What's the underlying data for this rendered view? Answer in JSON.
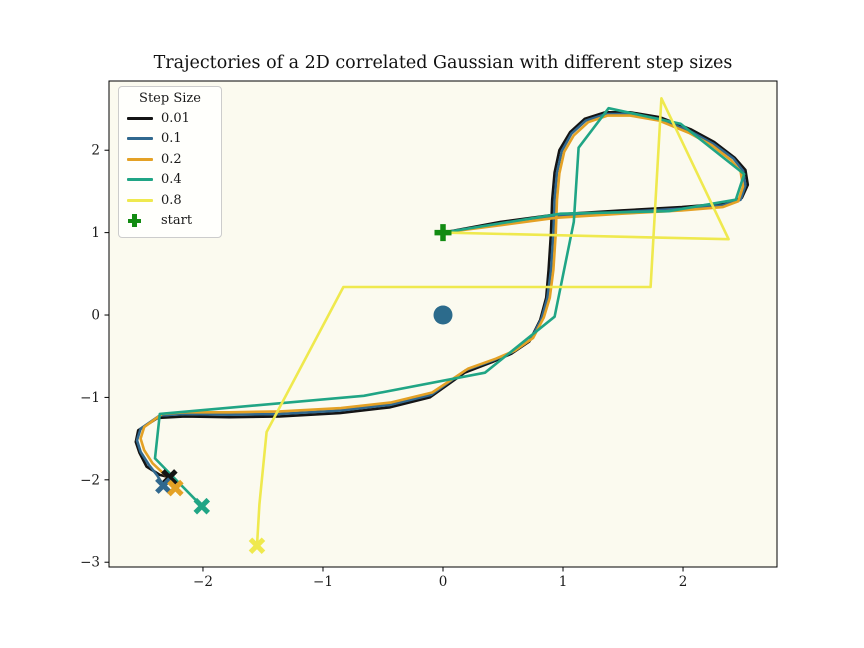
{
  "title": "Trajectories of a 2D correlated Gaussian with different step sizes",
  "legend": {
    "title": "Step Size",
    "entries": [
      {
        "label": "0.01",
        "type": "line",
        "color": "#141414"
      },
      {
        "label": "0.1",
        "type": "line",
        "color": "#31688e"
      },
      {
        "label": "0.2",
        "type": "line",
        "color": "#e4a125"
      },
      {
        "label": "0.4",
        "type": "line",
        "color": "#20a585"
      },
      {
        "label": "0.8",
        "type": "line",
        "color": "#efe94e"
      },
      {
        "label": "start",
        "type": "plus",
        "color": "#128b12"
      }
    ]
  },
  "axes": {
    "x_tick_labels": [
      "−2",
      "−1",
      "0",
      "1",
      "2"
    ],
    "y_tick_labels": [
      "−3",
      "−2",
      "−1",
      "0",
      "1",
      "2"
    ],
    "background_color": "#fbfaef",
    "spine_color": "#000000"
  },
  "chart_data": {
    "type": "line",
    "title": "Trajectories of a 2D correlated Gaussian with different step sizes",
    "xlabel": "",
    "ylabel": "",
    "xlim": [
      -2.783,
      2.783
    ],
    "ylim": [
      -3.058,
      2.84
    ],
    "x_ticks": [
      -2,
      -1,
      0,
      1,
      2
    ],
    "y_ticks": [
      -3,
      -2,
      -1,
      0,
      1,
      2
    ],
    "grid": false,
    "legend_position": "upper left",
    "legend_title": "Step Size",
    "series": [
      {
        "name": "0.01",
        "color": "#141414",
        "end_marker": "X",
        "points": [
          [
            0,
            1.0
          ],
          [
            0.48,
            1.13
          ],
          [
            0.94,
            1.22
          ],
          [
            1.49,
            1.27
          ],
          [
            1.99,
            1.31
          ],
          [
            2.33,
            1.35
          ],
          [
            2.49,
            1.42
          ],
          [
            2.54,
            1.58
          ],
          [
            2.52,
            1.76
          ],
          [
            2.43,
            1.91
          ],
          [
            2.26,
            2.1
          ],
          [
            2.07,
            2.25
          ],
          [
            1.81,
            2.4
          ],
          [
            1.56,
            2.46
          ],
          [
            1.35,
            2.46
          ],
          [
            1.18,
            2.38
          ],
          [
            1.06,
            2.22
          ],
          [
            0.97,
            2.0
          ],
          [
            0.93,
            1.73
          ],
          [
            0.91,
            1.4
          ],
          [
            0.9,
            1.0
          ],
          [
            0.88,
            0.55
          ],
          [
            0.86,
            0.21
          ],
          [
            0.81,
            -0.06
          ],
          [
            0.72,
            -0.32
          ],
          [
            0.57,
            -0.47
          ],
          [
            0.41,
            -0.57
          ],
          [
            0.18,
            -0.7
          ],
          [
            -0.11,
            -1.0
          ],
          [
            -0.44,
            -1.12
          ],
          [
            -0.86,
            -1.19
          ],
          [
            -1.36,
            -1.23
          ],
          [
            -1.78,
            -1.24
          ],
          [
            -2.15,
            -1.23
          ],
          [
            -2.38,
            -1.25
          ],
          [
            -2.54,
            -1.4
          ],
          [
            -2.56,
            -1.54
          ],
          [
            -2.53,
            -1.67
          ],
          [
            -2.47,
            -1.84
          ],
          [
            -2.36,
            -1.94
          ],
          [
            -2.28,
            -1.97
          ]
        ]
      },
      {
        "name": "0.1",
        "color": "#31688e",
        "end_marker": "X",
        "points": [
          [
            0,
            1.0
          ],
          [
            0.48,
            1.11
          ],
          [
            0.94,
            1.2
          ],
          [
            1.49,
            1.25
          ],
          [
            1.99,
            1.29
          ],
          [
            2.33,
            1.33
          ],
          [
            2.48,
            1.4
          ],
          [
            2.52,
            1.57
          ],
          [
            2.5,
            1.75
          ],
          [
            2.42,
            1.9
          ],
          [
            2.25,
            2.08
          ],
          [
            2.06,
            2.23
          ],
          [
            1.8,
            2.38
          ],
          [
            1.56,
            2.44
          ],
          [
            1.36,
            2.44
          ],
          [
            1.19,
            2.36
          ],
          [
            1.07,
            2.2
          ],
          [
            0.99,
            1.99
          ],
          [
            0.95,
            1.73
          ],
          [
            0.93,
            1.4
          ],
          [
            0.92,
            1.0
          ],
          [
            0.9,
            0.55
          ],
          [
            0.87,
            0.21
          ],
          [
            0.82,
            -0.05
          ],
          [
            0.73,
            -0.3
          ],
          [
            0.58,
            -0.45
          ],
          [
            0.42,
            -0.55
          ],
          [
            0.19,
            -0.67
          ],
          [
            -0.1,
            -0.97
          ],
          [
            -0.44,
            -1.09
          ],
          [
            -0.86,
            -1.16
          ],
          [
            -1.36,
            -1.2
          ],
          [
            -1.78,
            -1.21
          ],
          [
            -2.15,
            -1.2
          ],
          [
            -2.36,
            -1.22
          ],
          [
            -2.52,
            -1.38
          ],
          [
            -2.55,
            -1.52
          ],
          [
            -2.52,
            -1.66
          ],
          [
            -2.45,
            -1.82
          ],
          [
            -2.38,
            -1.95
          ],
          [
            -2.33,
            -2.07
          ]
        ]
      },
      {
        "name": "0.2",
        "color": "#e4a125",
        "end_marker": "X",
        "points": [
          [
            0,
            1.0
          ],
          [
            0.48,
            1.09
          ],
          [
            0.94,
            1.18
          ],
          [
            1.49,
            1.23
          ],
          [
            1.99,
            1.27
          ],
          [
            2.33,
            1.31
          ],
          [
            2.46,
            1.38
          ],
          [
            2.5,
            1.56
          ],
          [
            2.48,
            1.74
          ],
          [
            2.4,
            1.88
          ],
          [
            2.24,
            2.06
          ],
          [
            2.05,
            2.21
          ],
          [
            1.8,
            2.36
          ],
          [
            1.56,
            2.42
          ],
          [
            1.37,
            2.42
          ],
          [
            1.21,
            2.34
          ],
          [
            1.09,
            2.18
          ],
          [
            1.01,
            1.98
          ],
          [
            0.97,
            1.72
          ],
          [
            0.95,
            1.4
          ],
          [
            0.94,
            1.0
          ],
          [
            0.92,
            0.55
          ],
          [
            0.89,
            0.21
          ],
          [
            0.84,
            -0.03
          ],
          [
            0.75,
            -0.28
          ],
          [
            0.6,
            -0.43
          ],
          [
            0.44,
            -0.53
          ],
          [
            0.21,
            -0.65
          ],
          [
            -0.09,
            -0.94
          ],
          [
            -0.43,
            -1.06
          ],
          [
            -0.85,
            -1.13
          ],
          [
            -1.36,
            -1.17
          ],
          [
            -1.78,
            -1.18
          ],
          [
            -2.15,
            -1.18
          ],
          [
            -2.34,
            -1.2
          ],
          [
            -2.49,
            -1.36
          ],
          [
            -2.52,
            -1.5
          ],
          [
            -2.49,
            -1.64
          ],
          [
            -2.42,
            -1.8
          ],
          [
            -2.31,
            -1.95
          ],
          [
            -2.23,
            -2.1
          ]
        ]
      },
      {
        "name": "0.4",
        "color": "#20a585",
        "end_marker": "X",
        "points": [
          [
            0,
            1.0
          ],
          [
            0.98,
            1.23
          ],
          [
            1.88,
            1.26
          ],
          [
            2.44,
            1.4
          ],
          [
            2.51,
            1.71
          ],
          [
            1.98,
            2.32
          ],
          [
            1.38,
            2.51
          ],
          [
            1.13,
            2.03
          ],
          [
            1.09,
            1.13
          ],
          [
            0.93,
            -0.02
          ],
          [
            0.35,
            -0.7
          ],
          [
            -0.66,
            -0.98
          ],
          [
            -2.36,
            -1.2
          ],
          [
            -2.4,
            -1.74
          ],
          [
            -2.01,
            -2.32
          ]
        ]
      },
      {
        "name": "0.8",
        "color": "#efe94e",
        "end_marker": "X",
        "points": [
          [
            0,
            1.0
          ],
          [
            2.38,
            0.92
          ],
          [
            1.82,
            2.63
          ],
          [
            1.73,
            0.34
          ],
          [
            -0.83,
            0.34
          ],
          [
            -1.47,
            -1.42
          ],
          [
            -1.53,
            -2.3
          ],
          [
            -1.55,
            -2.8
          ]
        ]
      }
    ],
    "markers": [
      {
        "name": "start",
        "shape": "plus",
        "color": "#128b12",
        "point": [
          0,
          1
        ]
      },
      {
        "name": "mean",
        "shape": "circle",
        "color": "#2c6b8c",
        "point": [
          0,
          0
        ]
      }
    ]
  }
}
